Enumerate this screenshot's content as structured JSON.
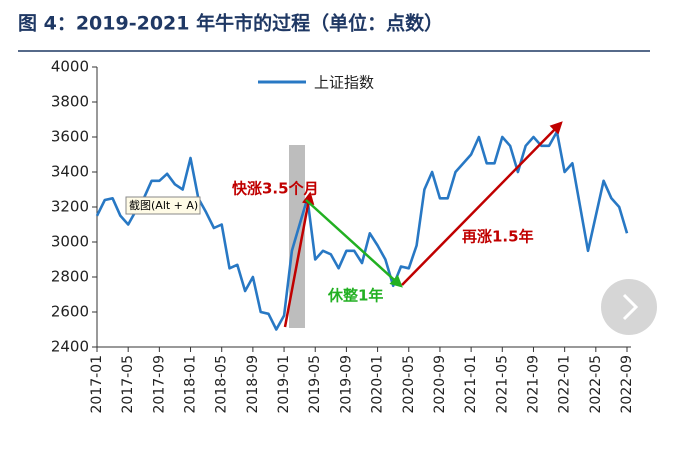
{
  "chart_data": {
    "type": "line",
    "title": "图 4：2019-2021 年牛市的过程（单位：点数）",
    "x": [
      "2017-01",
      "2017-02",
      "2017-03",
      "2017-04",
      "2017-05",
      "2017-06",
      "2017-07",
      "2017-08",
      "2017-09",
      "2017-10",
      "2017-11",
      "2017-12",
      "2018-01",
      "2018-02",
      "2018-03",
      "2018-04",
      "2018-05",
      "2018-06",
      "2018-07",
      "2018-08",
      "2018-09",
      "2018-10",
      "2018-11",
      "2018-12",
      "2019-01",
      "2019-02",
      "2019-03",
      "2019-04",
      "2019-05",
      "2019-06",
      "2019-07",
      "2019-08",
      "2019-09",
      "2019-10",
      "2019-11",
      "2019-12",
      "2020-01",
      "2020-02",
      "2020-03",
      "2020-04",
      "2020-05",
      "2020-06",
      "2020-07",
      "2020-08",
      "2020-09",
      "2020-10",
      "2020-11",
      "2020-12",
      "2021-01",
      "2021-02",
      "2021-03",
      "2021-04",
      "2021-05",
      "2021-06",
      "2021-07",
      "2021-08",
      "2021-09",
      "2021-10",
      "2021-11",
      "2021-12",
      "2022-01",
      "2022-02",
      "2022-03",
      "2022-04",
      "2022-05",
      "2022-06",
      "2022-07",
      "2022-08",
      "2022-09"
    ],
    "series": [
      {
        "name": "上证指数",
        "color": "#2878c4",
        "values": [
          3150,
          3240,
          3250,
          3150,
          3100,
          3180,
          3250,
          3350,
          3350,
          3390,
          3330,
          3300,
          3480,
          3250,
          3170,
          3080,
          3100,
          2850,
          2870,
          2720,
          2800,
          2600,
          2590,
          2500,
          2580,
          2950,
          3100,
          3250,
          2900,
          2950,
          2930,
          2850,
          2950,
          2950,
          2880,
          3050,
          2980,
          2900,
          2750,
          2860,
          2850,
          2980,
          3300,
          3400,
          3250,
          3250,
          3400,
          3450,
          3500,
          3600,
          3450,
          3450,
          3600,
          3550,
          3400,
          3550,
          3600,
          3550,
          3550,
          3630,
          3400,
          3450,
          3200,
          2950,
          3150,
          3350,
          3250,
          3200,
          3050
        ]
      }
    ],
    "xticks": [
      "2017-01",
      "2017-05",
      "2017-09",
      "2018-01",
      "2018-05",
      "2018-09",
      "2019-01",
      "2019-05",
      "2019-09",
      "2020-01",
      "2020-05",
      "2020-09",
      "2021-01",
      "2021-05",
      "2021-09",
      "2022-01",
      "2022-05",
      "2022-09"
    ],
    "ylim": [
      2400,
      4000
    ],
    "yticks": [
      2400,
      2600,
      2800,
      3000,
      3200,
      3400,
      3600,
      3800,
      4000
    ],
    "annotations": [
      "快涨3.5个月",
      "休整1年",
      "再涨1.5年"
    ],
    "legend": "top"
  },
  "ui": {
    "tooltip": "截图(Alt + A)"
  }
}
